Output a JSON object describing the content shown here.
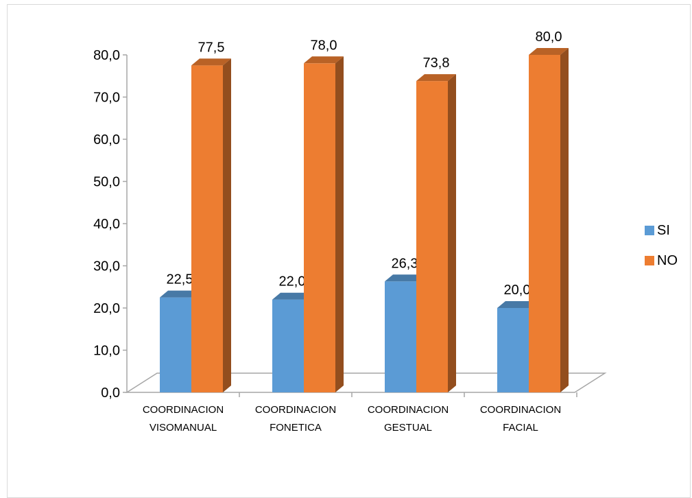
{
  "chart_data": {
    "type": "bar",
    "title": "",
    "xlabel": "",
    "ylabel": "",
    "ylim": [
      0,
      80
    ],
    "ytick_step": 10,
    "ytick_labels": [
      "0,0",
      "10,0",
      "20,0",
      "30,0",
      "40,0",
      "50,0",
      "60,0",
      "70,0",
      "80,0"
    ],
    "grid": false,
    "three_d": true,
    "legend_position": "right",
    "categories": [
      [
        "COORDINACION",
        "VISOMANUAL"
      ],
      [
        "COORDINACION",
        "FONETICA"
      ],
      [
        "COORDINACION",
        "GESTUAL"
      ],
      [
        "COORDINACION",
        "FACIAL"
      ]
    ],
    "series": [
      {
        "name": "SI",
        "color": "#5b9bd5",
        "values": [
          22.5,
          22.0,
          26.3,
          20.0
        ],
        "labels": [
          "22,5",
          "22,0",
          "26,3",
          "20,0"
        ]
      },
      {
        "name": "NO",
        "color": "#ed7d31",
        "values": [
          77.5,
          78.0,
          73.8,
          80.0
        ],
        "labels": [
          "77,5",
          "78,0",
          "73,8",
          "80,0"
        ]
      }
    ]
  }
}
